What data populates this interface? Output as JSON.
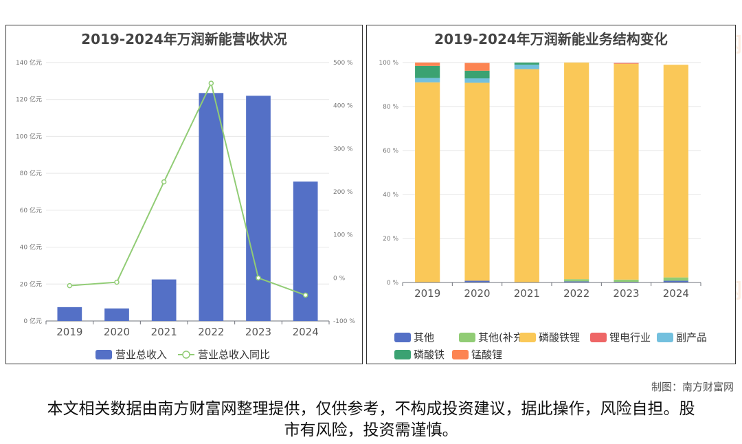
{
  "watermark": {
    "cn": "南方财富网",
    "en": "southmoney.com"
  },
  "left_chart": {
    "title": "2019-2024年万润新能营收状况",
    "legend": {
      "bar": "营业总收入",
      "line": "营业总收入同比"
    }
  },
  "right_chart": {
    "title": "2019-2024年万润新能业务结构变化",
    "legend": [
      "其他",
      "其他(补充)",
      "磷酸铁锂",
      "锂电行业",
      "副产品",
      "磷酸铁",
      "锰酸锂"
    ]
  },
  "credit": "制图：南方财富网",
  "disclaimer": "本文相关数据由南方财富网整理提供，仅供参考，不构成投资建议，据此操作，风险自担。股市有风险，投资需谨慎。",
  "colors": {
    "bar": "#5470c6",
    "line": "#91cc75"
  },
  "chart_data": [
    {
      "type": "bar",
      "title": "2019-2024年万润新能营收状况",
      "categories": [
        "2019",
        "2020",
        "2021",
        "2022",
        "2023",
        "2024"
      ],
      "series": [
        {
          "name": "营业总收入",
          "type": "bar",
          "axis": "left",
          "values": [
            7.5,
            6.8,
            22.5,
            123.5,
            122,
            75.5
          ]
        },
        {
          "name": "营业总收入同比",
          "type": "line",
          "axis": "right",
          "values": [
            -18,
            -10,
            223,
            452,
            0,
            -40
          ]
        }
      ],
      "y_left": {
        "min": 0,
        "max": 140,
        "step": 20,
        "unit": "亿元",
        "ticks": [
          "0 亿元",
          "20 亿元",
          "40 亿元",
          "60 亿元",
          "80 亿元",
          "100 亿元",
          "120 亿元",
          "140 亿元"
        ]
      },
      "y_right": {
        "min": -100,
        "max": 500,
        "step": 100,
        "unit": "%",
        "ticks": [
          "-100 %",
          "0 %",
          "100 %",
          "200 %",
          "300 %",
          "400 %",
          "500 %"
        ]
      },
      "grid": true,
      "legend_position": "bottom"
    },
    {
      "type": "bar",
      "stacked": true,
      "title": "2019-2024年万润新能业务结构变化",
      "categories": [
        "2019",
        "2020",
        "2021",
        "2022",
        "2023",
        "2024"
      ],
      "series": [
        {
          "name": "其他",
          "color": "#5470c6",
          "values": [
            0,
            0.8,
            0,
            0.5,
            0.3,
            0.8
          ]
        },
        {
          "name": "其他(补充)",
          "color": "#91cc75",
          "values": [
            0,
            0,
            0,
            1.0,
            1.0,
            1.5
          ]
        },
        {
          "name": "磷酸铁锂",
          "color": "#fac858",
          "values": [
            91,
            90,
            97,
            98.5,
            98.2,
            96.7
          ]
        },
        {
          "name": "锂电行业",
          "color": "#ee6666",
          "values": [
            0,
            0,
            0,
            0,
            0.3,
            0
          ]
        },
        {
          "name": "副产品",
          "color": "#73c0de",
          "values": [
            2,
            2,
            2,
            0,
            0,
            0
          ]
        },
        {
          "name": "磷酸铁",
          "color": "#3ba272",
          "values": [
            5.5,
            3.5,
            1,
            0,
            0,
            0
          ]
        },
        {
          "name": "锰酸锂",
          "color": "#fc8452",
          "values": [
            1.5,
            3.5,
            0,
            0,
            0,
            0
          ]
        }
      ],
      "y": {
        "min": 0,
        "max": 100,
        "step": 20,
        "ticks": [
          "0 %",
          "20 %",
          "40 %",
          "60 %",
          "80 %",
          "100 %"
        ]
      },
      "grid": true,
      "legend_position": "bottom"
    }
  ]
}
